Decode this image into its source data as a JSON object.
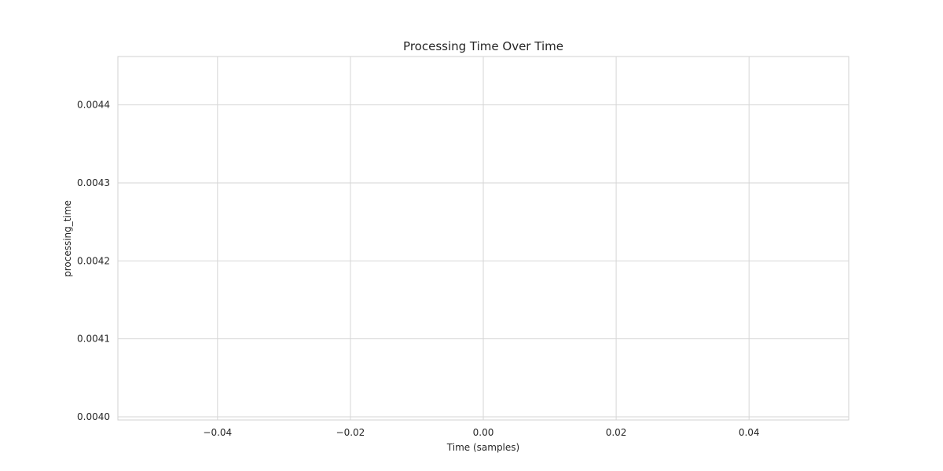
{
  "chart_data": {
    "type": "line",
    "title": "Processing Time Over Time",
    "xlabel": "Time (samples)",
    "ylabel": "processing_time",
    "xlim": [
      -0.055,
      0.055
    ],
    "ylim": [
      0.003996,
      0.004462
    ],
    "x_ticks": [
      -0.04,
      -0.02,
      0.0,
      0.02,
      0.04
    ],
    "x_tick_labels": [
      "−0.04",
      "−0.02",
      "0.00",
      "0.02",
      "0.04"
    ],
    "y_ticks": [
      0.004,
      0.0041,
      0.0042,
      0.0043,
      0.0044
    ],
    "y_tick_labels": [
      "0.0040",
      "0.0041",
      "0.0042",
      "0.0043",
      "0.0044"
    ],
    "grid": true,
    "legend": "none",
    "series": [
      {
        "x": [],
        "y": []
      }
    ],
    "colors": {
      "grid": "#d6d6d6",
      "frame": "#d0d0d0",
      "text": "#262626",
      "line": "#1f77b4"
    }
  }
}
